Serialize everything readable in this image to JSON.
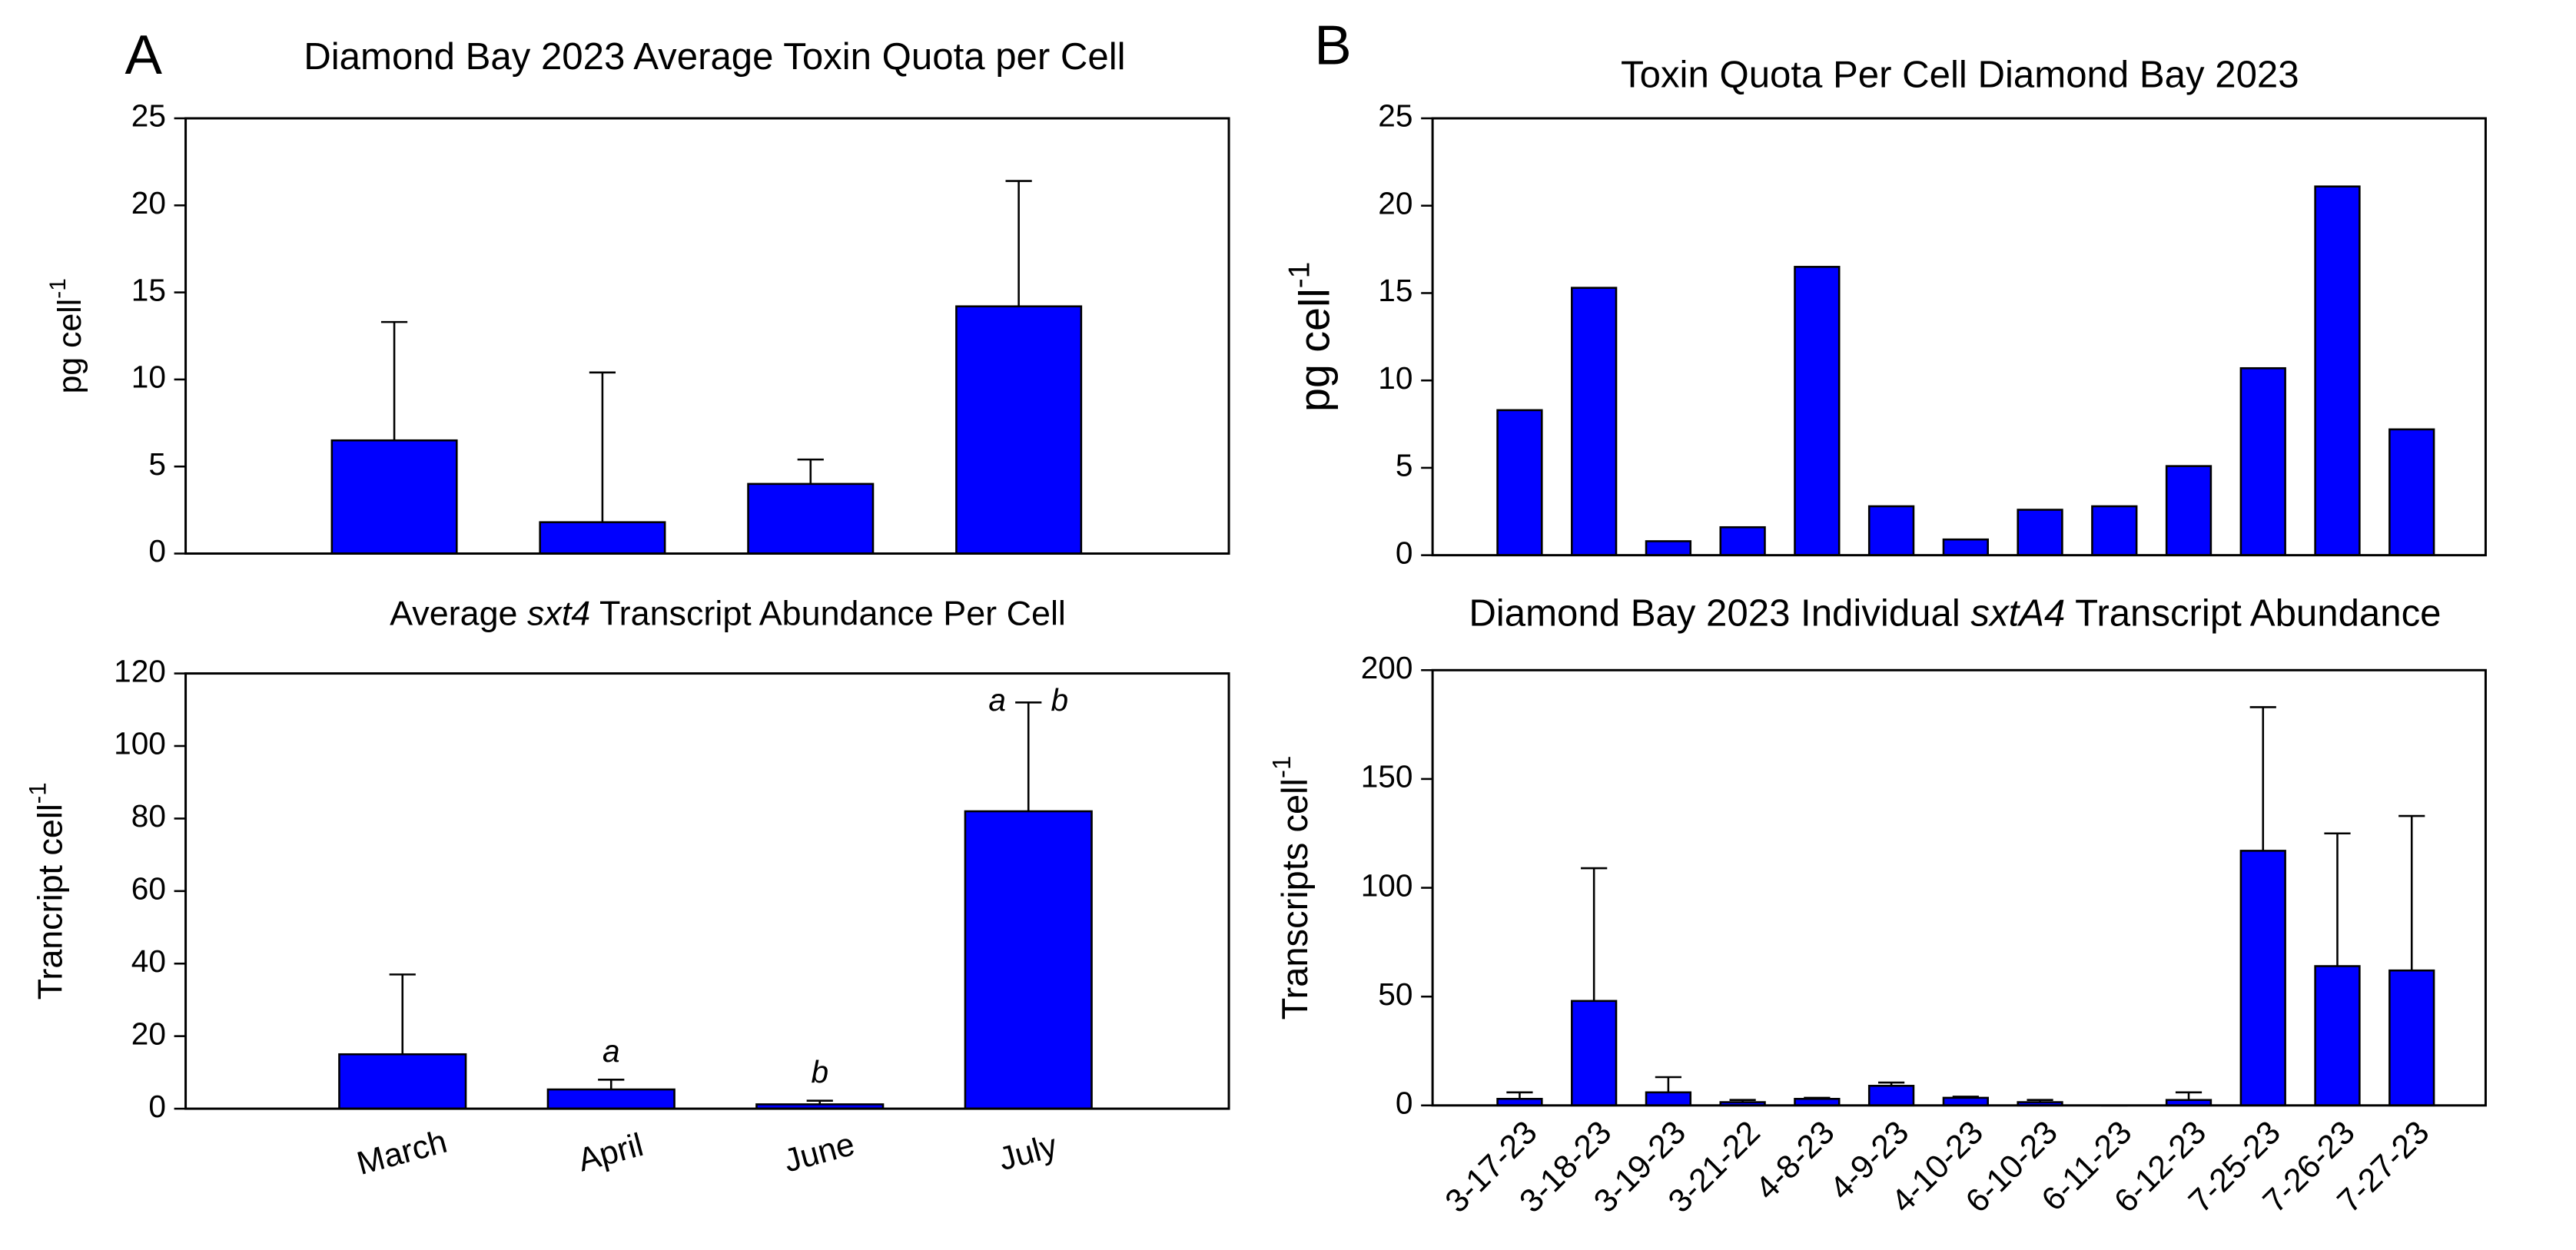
{
  "panels": [
    "A",
    "B"
  ],
  "chart_data": [
    {
      "type": "bar",
      "title": [
        {
          "text": "Diamond Bay 2023 Average Toxin Quota per Cell"
        }
      ],
      "ylabel": [
        {
          "text": "pg cell"
        },
        {
          "text": "-1",
          "sup": true
        }
      ],
      "values": [
        6.5,
        1.8,
        4.0,
        14.2
      ],
      "errors": [
        6.8,
        8.6,
        1.4,
        7.2
      ],
      "color": "#0000ff",
      "ylim": [
        0,
        25
      ],
      "yticks": [
        0,
        5,
        10,
        15,
        20,
        25
      ]
    },
    {
      "type": "bar",
      "title": [
        {
          "text": "Toxin Quota Per Cell Diamond Bay 2023"
        }
      ],
      "ylabel": [
        {
          "text": "pg cell"
        },
        {
          "text": "-1",
          "sup": true
        }
      ],
      "values": [
        8.3,
        15.3,
        0.8,
        1.6,
        16.5,
        2.8,
        0.9,
        2.6,
        2.8,
        5.1,
        10.7,
        21.1,
        7.2
      ],
      "color": "#0000ff",
      "ylim": [
        0,
        25
      ],
      "yticks": [
        0,
        5,
        10,
        15,
        20,
        25
      ]
    },
    {
      "type": "bar",
      "title": [
        {
          "text": "Average "
        },
        {
          "text": "sxt4",
          "italic": true
        },
        {
          "text": " Transcript Abundance Per Cell"
        }
      ],
      "ylabel": [
        {
          "text": "Trancript cell"
        },
        {
          "text": "-1",
          "sup": true
        }
      ],
      "categories": [
        "March",
        "April",
        "June",
        "July"
      ],
      "values": [
        15,
        5.3,
        1.2,
        82
      ],
      "errors": [
        22,
        2.7,
        1,
        30
      ],
      "annotations": [
        {
          "text": "a",
          "category": "April"
        },
        {
          "text": "b",
          "category": "June"
        },
        {
          "text": "a",
          "category": "July",
          "side": "left"
        },
        {
          "text": "b",
          "category": "July",
          "side": "right"
        }
      ],
      "color": "#0000ff",
      "ylim": [
        0,
        120
      ],
      "yticks": [
        0,
        20,
        40,
        60,
        80,
        100,
        120
      ]
    },
    {
      "type": "bar",
      "title": [
        {
          "text": "Diamond Bay 2023 Individual "
        },
        {
          "text": "sxtA4",
          "italic": true
        },
        {
          "text": " Transcript Abundance"
        }
      ],
      "ylabel": [
        {
          "text": "Transcripts cell"
        },
        {
          "text": "-1",
          "sup": true
        }
      ],
      "categories": [
        "3-17-23",
        "3-18-23",
        "3-19-23",
        "3-21-22",
        "4-8-23",
        "4-9-23",
        "4-10-23",
        "6-10-23",
        "6-11-23",
        "6-12-23",
        "7-25-23",
        "7-26-23",
        "7-27-23"
      ],
      "values": [
        3,
        48,
        6,
        1.5,
        3,
        9,
        3.5,
        1.5,
        0,
        2.5,
        117,
        64,
        62
      ],
      "errors": [
        3,
        61,
        7,
        1,
        0.5,
        1.5,
        0.5,
        1,
        0,
        3.5,
        66,
        61,
        71
      ],
      "color": "#0000ff",
      "ylim": [
        0,
        200
      ],
      "yticks": [
        0,
        50,
        100,
        150,
        200
      ]
    }
  ]
}
